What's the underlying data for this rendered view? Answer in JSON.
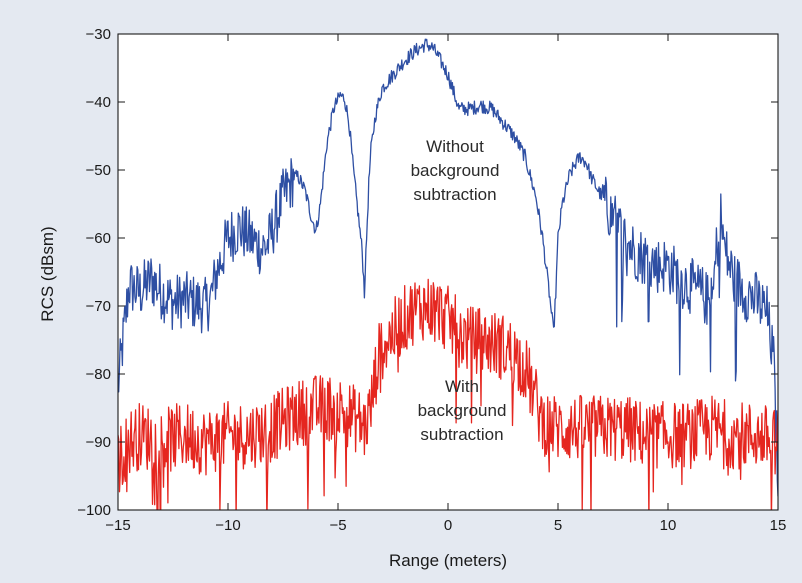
{
  "chart_data": {
    "type": "line",
    "title": "",
    "xlabel": "Range (meters)",
    "ylabel": "RCS (dBsm)",
    "xlim": [
      -15,
      15
    ],
    "ylim": [
      -100,
      -30
    ],
    "xticks": [
      -15,
      -10,
      -5,
      0,
      5,
      10,
      15
    ],
    "xtick_labels": [
      "−15",
      "−10",
      "−5",
      "0",
      "5",
      "10",
      "15"
    ],
    "yticks": [
      -100,
      -90,
      -80,
      -70,
      -60,
      -50,
      -40,
      -30
    ],
    "ytick_labels": [
      "−100",
      "−90",
      "−80",
      "−70",
      "−60",
      "−50",
      "−40",
      "−30"
    ],
    "grid": false,
    "legend": "none",
    "series": [
      {
        "color": "#2e4fa3",
        "annotation_lines": [
          "Without",
          "background",
          "subtraction"
        ],
        "x": [
          -15,
          -14.6,
          -14.5,
          -14,
          -13.5,
          -13,
          -12.5,
          -12,
          -11.5,
          -11,
          -10.8,
          -10.5,
          -10,
          -9.5,
          -9,
          -8.5,
          -8.2,
          -8,
          -7.5,
          -7,
          -6.8,
          -6.5,
          -6.2,
          -6,
          -5.8,
          -5.5,
          -5.2,
          -4.9,
          -4.7,
          -4.5,
          -4.3,
          -4.1,
          -3.9,
          -3.8,
          -3.7,
          -3.6,
          -3.5,
          -3.3,
          -3,
          -2.5,
          -2,
          -1.5,
          -1,
          -0.7,
          -0.5,
          0,
          0.3,
          0.5,
          1,
          1.5,
          2,
          2.5,
          3,
          3.5,
          4,
          4.3,
          4.6,
          4.8,
          4.9,
          5,
          5.2,
          5.5,
          5.8,
          6,
          6.3,
          6.5,
          7,
          7.5,
          8,
          8.5,
          9,
          9.5,
          10,
          10.5,
          11,
          11.5,
          12,
          12.2,
          12.4,
          12.6,
          13,
          13.5,
          14,
          14.5,
          14.8,
          15
        ],
        "y": [
          -82,
          -70,
          -67,
          -68,
          -66,
          -68,
          -69.5,
          -69,
          -69.5,
          -70,
          -69,
          -65,
          -60,
          -58.5,
          -60,
          -61.5,
          -61,
          -59,
          -54,
          -51,
          -51,
          -53,
          -57,
          -59,
          -55,
          -46,
          -41,
          -39,
          -39.5,
          -43,
          -50,
          -56,
          -62,
          -68,
          -60,
          -52,
          -47,
          -42,
          -38,
          -36,
          -34,
          -32.5,
          -31.5,
          -32,
          -33,
          -36,
          -39,
          -41,
          -41,
          -40.5,
          -41,
          -43,
          -45,
          -48,
          -54,
          -60,
          -68,
          -74,
          -68,
          -60,
          -55,
          -51,
          -49,
          -48,
          -49,
          -51,
          -54,
          -57,
          -60,
          -62,
          -63,
          -64,
          -64,
          -66,
          -67,
          -68,
          -70,
          -62,
          -57,
          -62,
          -66,
          -68,
          -69,
          -71,
          -78,
          -95
        ],
        "noise": 3.0
      },
      {
        "color": "#e5261f",
        "annotation_lines": [
          "With",
          "background",
          "subtraction"
        ],
        "x": [
          -15,
          -14.5,
          -14,
          -13,
          -12,
          -11,
          -10,
          -9,
          -8,
          -7,
          -6,
          -5,
          -4.5,
          -4,
          -3.8,
          -3.5,
          -3.2,
          -3,
          -2.5,
          -2,
          -1.5,
          -1,
          -0.5,
          0,
          0.5,
          1,
          1.5,
          2,
          2.5,
          3,
          3.5,
          3.9,
          4.3,
          5,
          6,
          7,
          8,
          9,
          10,
          11,
          12,
          13,
          14,
          15
        ],
        "y": [
          -93,
          -90,
          -89,
          -90,
          -89,
          -90,
          -89,
          -89,
          -88,
          -86,
          -85,
          -85,
          -86,
          -87,
          -88,
          -85,
          -78,
          -76,
          -74,
          -72,
          -70.5,
          -70,
          -70.5,
          -72,
          -74,
          -75,
          -75,
          -75.5,
          -76,
          -77,
          -79,
          -83,
          -87,
          -88,
          -88,
          -88,
          -88,
          -89,
          -89,
          -89,
          -88,
          -89,
          -89,
          -90
        ],
        "noise": 5.0
      }
    ]
  }
}
